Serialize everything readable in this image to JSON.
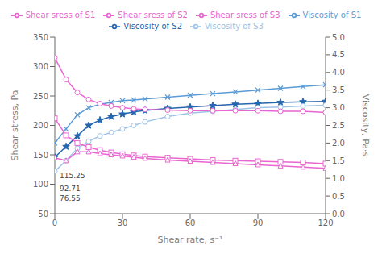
{
  "chart_data": {
    "type": "line",
    "xlabel": "Shear rate, s⁻¹",
    "ylabel": "Shear stress, Pa",
    "y2label": "Viscosity, Pa·s",
    "x": [
      0,
      5,
      10,
      15,
      20,
      25,
      30,
      35,
      40,
      50,
      60,
      70,
      80,
      90,
      100,
      110,
      120
    ],
    "xlim": [
      0,
      120
    ],
    "xticks": [
      0,
      30,
      60,
      90,
      120
    ],
    "ylim": [
      50,
      350
    ],
    "yticks": [
      50,
      100,
      150,
      200,
      250,
      300,
      350
    ],
    "y2lim": [
      0,
      5
    ],
    "y2ticks": [
      {
        "value": 0,
        "label": "0.0"
      },
      0.5,
      {
        "value": 1,
        "label": "1.0"
      },
      1.5,
      {
        "value": 2,
        "label": "2.0"
      },
      2.5,
      {
        "value": 3,
        "label": "3.0"
      },
      3.5,
      {
        "value": 4,
        "label": "4.0"
      },
      4.5,
      {
        "value": 5,
        "label": "5.0"
      }
    ],
    "grid": false,
    "legend": "top",
    "series": [
      {
        "name": "Viscosity of S1",
        "axis": "y2",
        "color": "#5B9BD5",
        "marker": "x",
        "values": [
          2.0,
          2.4,
          2.8,
          3.0,
          3.1,
          3.15,
          3.2,
          3.22,
          3.25,
          3.3,
          3.35,
          3.4,
          3.45,
          3.5,
          3.55,
          3.6,
          3.65
        ]
      },
      {
        "name": "Viscosity of S2",
        "axis": "y2",
        "color": "#2566AE",
        "marker": "star",
        "values": [
          1.6,
          1.9,
          2.2,
          2.5,
          2.65,
          2.75,
          2.82,
          2.88,
          2.92,
          2.98,
          3.02,
          3.06,
          3.1,
          3.12,
          3.15,
          3.17,
          3.18
        ]
      },
      {
        "name": "Viscosity of S3",
        "axis": "y2",
        "color": "#9DC3E6",
        "marker": "circle",
        "values": [
          1.2,
          1.5,
          1.85,
          2.05,
          2.2,
          2.3,
          2.4,
          2.5,
          2.6,
          2.75,
          2.85,
          2.9,
          2.95,
          3.0,
          3.02,
          3.05,
          3.07
        ]
      },
      {
        "name": "Shear sress of S1",
        "axis": "y",
        "color": "#E966D0",
        "marker": "circle",
        "values": [
          315,
          278,
          256,
          244,
          237,
          233,
          230,
          228,
          227,
          226,
          225,
          225,
          225,
          225,
          224,
          224,
          222
        ]
      },
      {
        "name": "Shear sress of S2",
        "axis": "y",
        "color": "#E966D0",
        "marker": "square",
        "values": [
          212,
          183,
          170,
          163,
          158,
          154,
          151,
          149,
          147,
          145,
          143,
          141,
          140,
          139,
          138,
          137,
          135
        ]
      },
      {
        "name": "Shear sress of S3",
        "axis": "y",
        "color": "#E966D0",
        "marker": "triangle",
        "values": [
          145,
          140,
          155,
          155,
          152,
          150,
          148,
          146,
          144,
          141,
          139,
          137,
          135,
          133,
          131,
          129,
          127
        ]
      }
    ],
    "annotations": [
      {
        "text": "115.25",
        "x": 0,
        "y": 115.25
      },
      {
        "text": "92.71",
        "x": 0,
        "y": 92.71
      },
      {
        "text": "76.55",
        "x": 0,
        "y": 76.55
      }
    ]
  }
}
